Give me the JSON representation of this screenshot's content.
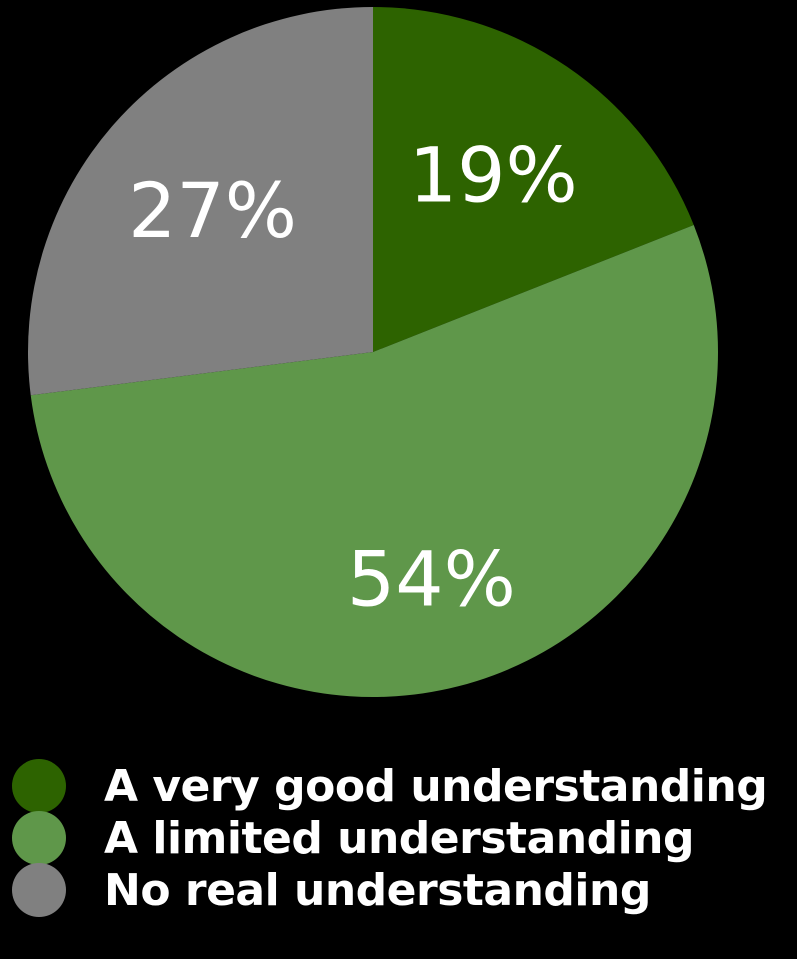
{
  "chart_data": {
    "type": "pie",
    "title": "",
    "categories": [
      "A very good understanding",
      "A limited understanding",
      "No real understanding"
    ],
    "values": [
      19,
      54,
      27
    ],
    "value_labels": [
      "19%",
      "54%",
      "27%"
    ],
    "colors": [
      "#2d6300",
      "#5f974a",
      "#808080"
    ],
    "start_angle_deg": 0,
    "direction": "clockwise",
    "legend_position": "bottom"
  },
  "background_color": "#000000"
}
